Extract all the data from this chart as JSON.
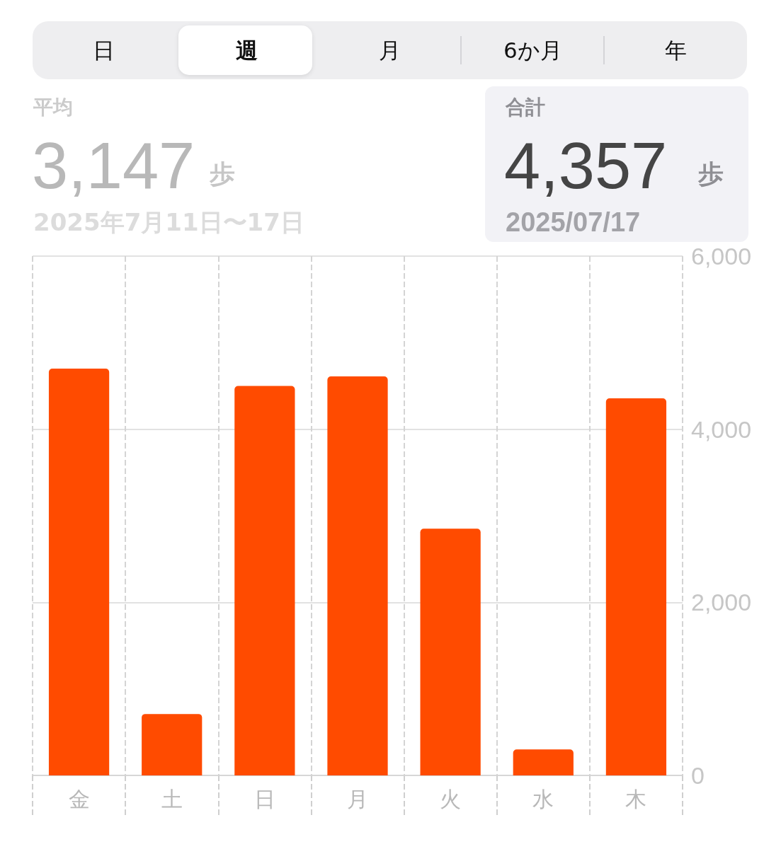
{
  "chart_data": {
    "type": "bar",
    "categories": [
      "金",
      "土",
      "日",
      "月",
      "火",
      "水",
      "木"
    ],
    "values": [
      4700,
      710,
      4500,
      4610,
      2850,
      300,
      4357
    ],
    "color": "#ff4b00",
    "ylim": [
      0,
      6000
    ],
    "yticks": [
      0,
      {
        "value": 2000,
        "label": "2,000"
      },
      {
        "value": 4000,
        "label": "4,000"
      },
      {
        "value": 6000,
        "label": "6,000"
      }
    ],
    "grid": true,
    "annotations": [
      "日",
      "週",
      "月",
      "6か月",
      "年",
      "平均",
      "3,147",
      "歩",
      "2025年7月11日〜17日",
      "合計",
      "4,357",
      "歩",
      "2025/07/17"
    ]
  }
}
